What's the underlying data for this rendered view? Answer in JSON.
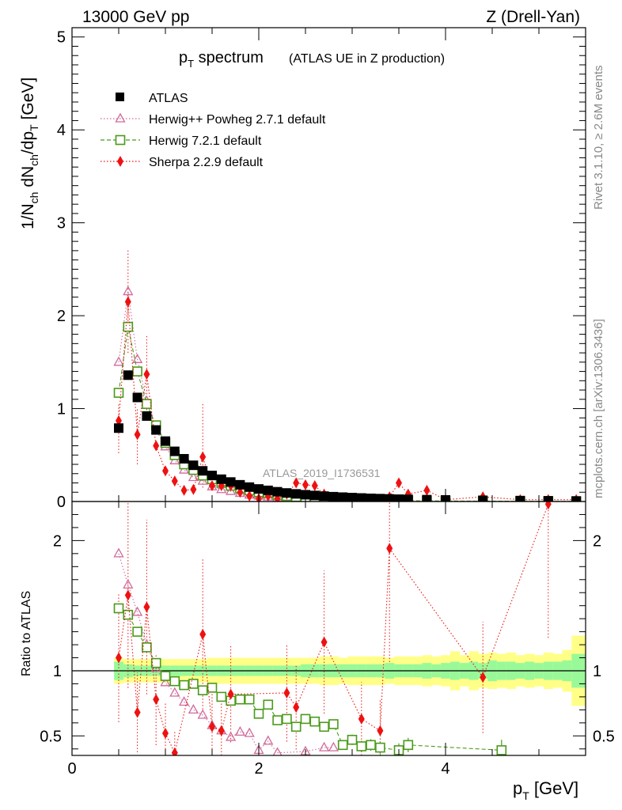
{
  "header": {
    "left": "13000 GeV pp",
    "right": "Z (Drell-Yan)"
  },
  "side_labels": {
    "rivet": "Rivet 3.1.10, ≥ 2.6M events",
    "mcplots": "mcplots.cern.ch [arXiv:1306.3436]"
  },
  "watermark": "ATLAS_2019_I1736531",
  "colors": {
    "data": "#000000",
    "herwigpp": "#d06a9a",
    "herwig7": "#4a9a1a",
    "sherpa": "#ee1111",
    "band_inner": "#99f999",
    "band_outer": "#ffff88"
  },
  "chart_data": [
    {
      "type": "scatter",
      "title_main": "p",
      "title_sub": "T",
      "title_rest": " spectrum",
      "title_note": "(ATLAS UE in Z production)",
      "ylabel": "1/N_ch dN_ch/dp_T [GeV]",
      "xlim": [
        0,
        5.5
      ],
      "ylim": [
        0,
        5.1
      ],
      "x_ticks": [
        0,
        2,
        4
      ],
      "y_ticks": [
        0,
        1,
        2,
        3,
        4,
        5
      ],
      "legend": [
        {
          "name": "ATLAS",
          "marker": "square-filled"
        },
        {
          "name": "Herwig++ Powheg 2.7.1 default",
          "marker": "triangle-open"
        },
        {
          "name": "Herwig 7.2.1 default",
          "marker": "square-open"
        },
        {
          "name": "Sherpa 2.2.9 default",
          "marker": "diamond-filled"
        }
      ],
      "x": [
        0.5,
        0.6,
        0.7,
        0.8,
        0.9,
        1.0,
        1.1,
        1.2,
        1.3,
        1.4,
        1.5,
        1.6,
        1.7,
        1.8,
        1.9,
        2.0,
        2.1,
        2.2,
        2.3,
        2.4,
        2.5,
        2.6,
        2.7,
        2.8,
        2.9,
        3.0,
        3.1,
        3.2,
        3.3,
        3.4,
        3.5,
        3.6,
        3.8,
        4.0,
        4.4,
        4.8,
        5.1,
        5.4
      ],
      "series": [
        {
          "name": "ATLAS",
          "values": [
            0.79,
            1.36,
            1.12,
            0.92,
            0.77,
            0.65,
            0.54,
            0.46,
            0.39,
            0.33,
            0.28,
            0.24,
            0.21,
            0.18,
            0.155,
            0.135,
            0.12,
            0.105,
            0.092,
            0.082,
            0.073,
            0.065,
            0.058,
            0.052,
            0.047,
            0.042,
            0.038,
            0.034,
            0.031,
            0.028,
            0.025,
            0.023,
            0.02,
            0.017,
            0.013,
            0.01,
            0.008,
            0.006
          ]
        },
        {
          "name": "Herwig++ Powheg 2.7.1 default",
          "values": [
            1.5,
            2.26,
            1.53,
            1.08,
            0.77,
            0.59,
            0.44,
            0.34,
            0.26,
            0.22,
            0.16,
            0.13,
            0.11,
            0.09,
            0.07,
            0.06,
            0.05,
            0.04,
            0.035,
            0.03,
            0.025,
            0.02,
            0.02,
            0.018,
            0.016,
            0.014,
            0.012,
            0.01,
            0.009,
            0.008,
            0.007,
            0.006,
            0.005,
            0.004,
            0.003,
            0.002,
            0.002,
            0.001
          ]
        },
        {
          "name": "Herwig 7.2.1 default",
          "values": [
            1.17,
            1.88,
            1.4,
            1.05,
            0.82,
            0.63,
            0.5,
            0.4,
            0.34,
            0.28,
            0.24,
            0.2,
            0.17,
            0.14,
            0.12,
            0.1,
            0.09,
            0.07,
            0.06,
            0.05,
            0.045,
            0.04,
            0.035,
            0.03,
            0.025,
            0.02,
            0.017,
            0.015,
            0.013,
            0.011,
            0.01,
            0.009,
            0.007,
            0.006,
            0.004,
            0.003,
            0.002,
            0.002
          ]
        },
        {
          "name": "Sherpa 2.2.9 default",
          "values": [
            0.87,
            2.15,
            0.72,
            1.37,
            0.6,
            0.33,
            0.22,
            0.12,
            0.13,
            0.48,
            0.17,
            0.17,
            0.17,
            0.1,
            0.06,
            0.03,
            0.06,
            0.03,
            0.08,
            0.2,
            0.18,
            0.17,
            0.08,
            0.02,
            0.02,
            0.02,
            0.02,
            0.02,
            0.02,
            0.05,
            0.2,
            0.08,
            0.12,
            0.02,
            0.05,
            0.02,
            0.02,
            0.02
          ]
        }
      ],
      "error_bars": [
        {
          "series": "Sherpa 2.2.9 default",
          "x": 0.5,
          "low": 0.52,
          "high": 1.05
        },
        {
          "series": "Sherpa 2.2.9 default",
          "x": 0.6,
          "low": 1.6,
          "high": 2.72
        },
        {
          "series": "Sherpa 2.2.9 default",
          "x": 0.7,
          "low": 0.4,
          "high": 1.0
        },
        {
          "series": "Sherpa 2.2.9 default",
          "x": 0.8,
          "low": 0.95,
          "high": 1.8
        },
        {
          "series": "Sherpa 2.2.9 default",
          "x": 1.4,
          "low": 0.15,
          "high": 1.05
        }
      ]
    },
    {
      "type": "scatter",
      "ylabel": "Ratio to ATLAS",
      "xlabel": "p_T [GeV]",
      "xlabel_main": "p",
      "xlabel_sub": "T",
      "xlabel_rest": " [GeV]",
      "xlim": [
        0,
        5.5
      ],
      "ylim": [
        0.35,
        2.3
      ],
      "x_ticks": [
        0,
        2,
        4
      ],
      "y_ticks": [
        0.5,
        1,
        2
      ],
      "reference_line": 1,
      "band": {
        "x_edges": [
          0.45,
          0.55,
          0.65,
          0.75,
          0.85,
          0.95,
          1.05,
          1.15,
          1.25,
          1.35,
          1.45,
          1.55,
          1.65,
          1.75,
          1.85,
          1.95,
          2.05,
          2.15,
          2.25,
          2.35,
          2.45,
          2.55,
          2.65,
          2.75,
          2.85,
          2.95,
          3.05,
          3.15,
          3.25,
          3.35,
          3.45,
          3.55,
          3.65,
          3.75,
          3.85,
          3.95,
          4.05,
          4.15,
          4.25,
          4.35,
          4.45,
          4.55,
          4.65,
          4.75,
          4.85,
          4.95,
          5.05,
          5.15,
          5.25,
          5.35,
          5.45,
          5.55
        ],
        "inner_half_width": [
          0.07,
          0.05,
          0.04,
          0.04,
          0.04,
          0.04,
          0.04,
          0.04,
          0.04,
          0.04,
          0.04,
          0.04,
          0.04,
          0.04,
          0.04,
          0.04,
          0.04,
          0.04,
          0.04,
          0.04,
          0.05,
          0.05,
          0.05,
          0.05,
          0.05,
          0.05,
          0.05,
          0.05,
          0.05,
          0.06,
          0.05,
          0.05,
          0.05,
          0.06,
          0.05,
          0.06,
          0.07,
          0.06,
          0.07,
          0.06,
          0.08,
          0.07,
          0.07,
          0.06,
          0.07,
          0.06,
          0.07,
          0.07,
          0.08,
          0.13,
          0.13
        ],
        "outer_half_width": [
          0.1,
          0.09,
          0.09,
          0.09,
          0.09,
          0.09,
          0.09,
          0.09,
          0.09,
          0.09,
          0.1,
          0.1,
          0.1,
          0.1,
          0.1,
          0.1,
          0.1,
          0.1,
          0.1,
          0.1,
          0.1,
          0.1,
          0.11,
          0.11,
          0.1,
          0.11,
          0.11,
          0.11,
          0.11,
          0.1,
          0.11,
          0.11,
          0.11,
          0.12,
          0.11,
          0.12,
          0.15,
          0.12,
          0.15,
          0.13,
          0.14,
          0.13,
          0.14,
          0.12,
          0.13,
          0.12,
          0.14,
          0.13,
          0.16,
          0.27,
          0.27
        ]
      },
      "series": [
        {
          "name": "Herwig++ Powheg 2.7.1 default",
          "x": [
            0.5,
            0.6,
            0.7,
            0.8,
            0.9,
            1.0,
            1.1,
            1.2,
            1.3,
            1.4,
            1.5,
            1.6,
            1.7,
            1.8,
            1.9,
            2.0,
            2.1,
            2.2,
            2.5,
            2.7,
            2.8
          ],
          "values": [
            1.9,
            1.66,
            1.45,
            1.2,
            1.02,
            0.91,
            0.83,
            0.76,
            0.7,
            0.66,
            0.58,
            0.54,
            0.49,
            0.53,
            0.52,
            0.39,
            0.46,
            0.37,
            0.38,
            0.41,
            0.41
          ]
        },
        {
          "name": "Herwig 7.2.1 default",
          "x": [
            0.5,
            0.6,
            0.7,
            0.8,
            0.9,
            1.0,
            1.1,
            1.2,
            1.3,
            1.4,
            1.5,
            1.6,
            1.7,
            1.8,
            1.9,
            2.0,
            2.1,
            2.2,
            2.3,
            2.4,
            2.5,
            2.6,
            2.7,
            2.8,
            2.9,
            3.0,
            3.1,
            3.2,
            3.3,
            3.5,
            3.6,
            4.6
          ],
          "values": [
            1.48,
            1.43,
            1.3,
            1.18,
            1.06,
            0.96,
            0.92,
            0.89,
            0.9,
            0.85,
            0.87,
            0.8,
            0.77,
            0.78,
            0.78,
            0.67,
            0.74,
            0.62,
            0.63,
            0.57,
            0.63,
            0.61,
            0.57,
            0.59,
            0.43,
            0.47,
            0.42,
            0.43,
            0.41,
            0.39,
            0.43,
            0.39
          ]
        },
        {
          "name": "Sherpa 2.2.9 default",
          "x": [
            0.5,
            0.6,
            0.7,
            0.8,
            0.9,
            1.0,
            1.1,
            1.4,
            1.5,
            1.6,
            1.7,
            2.3,
            2.4,
            2.7,
            3.1,
            3.3,
            3.4,
            4.4,
            5.1
          ],
          "values": [
            1.1,
            1.58,
            0.68,
            1.49,
            0.78,
            0.52,
            0.37,
            1.28,
            0.57,
            0.54,
            0.82,
            0.83,
            0.72,
            1.22,
            0.63,
            0.54,
            1.94,
            0.95,
            2.28
          ]
        }
      ]
    }
  ]
}
